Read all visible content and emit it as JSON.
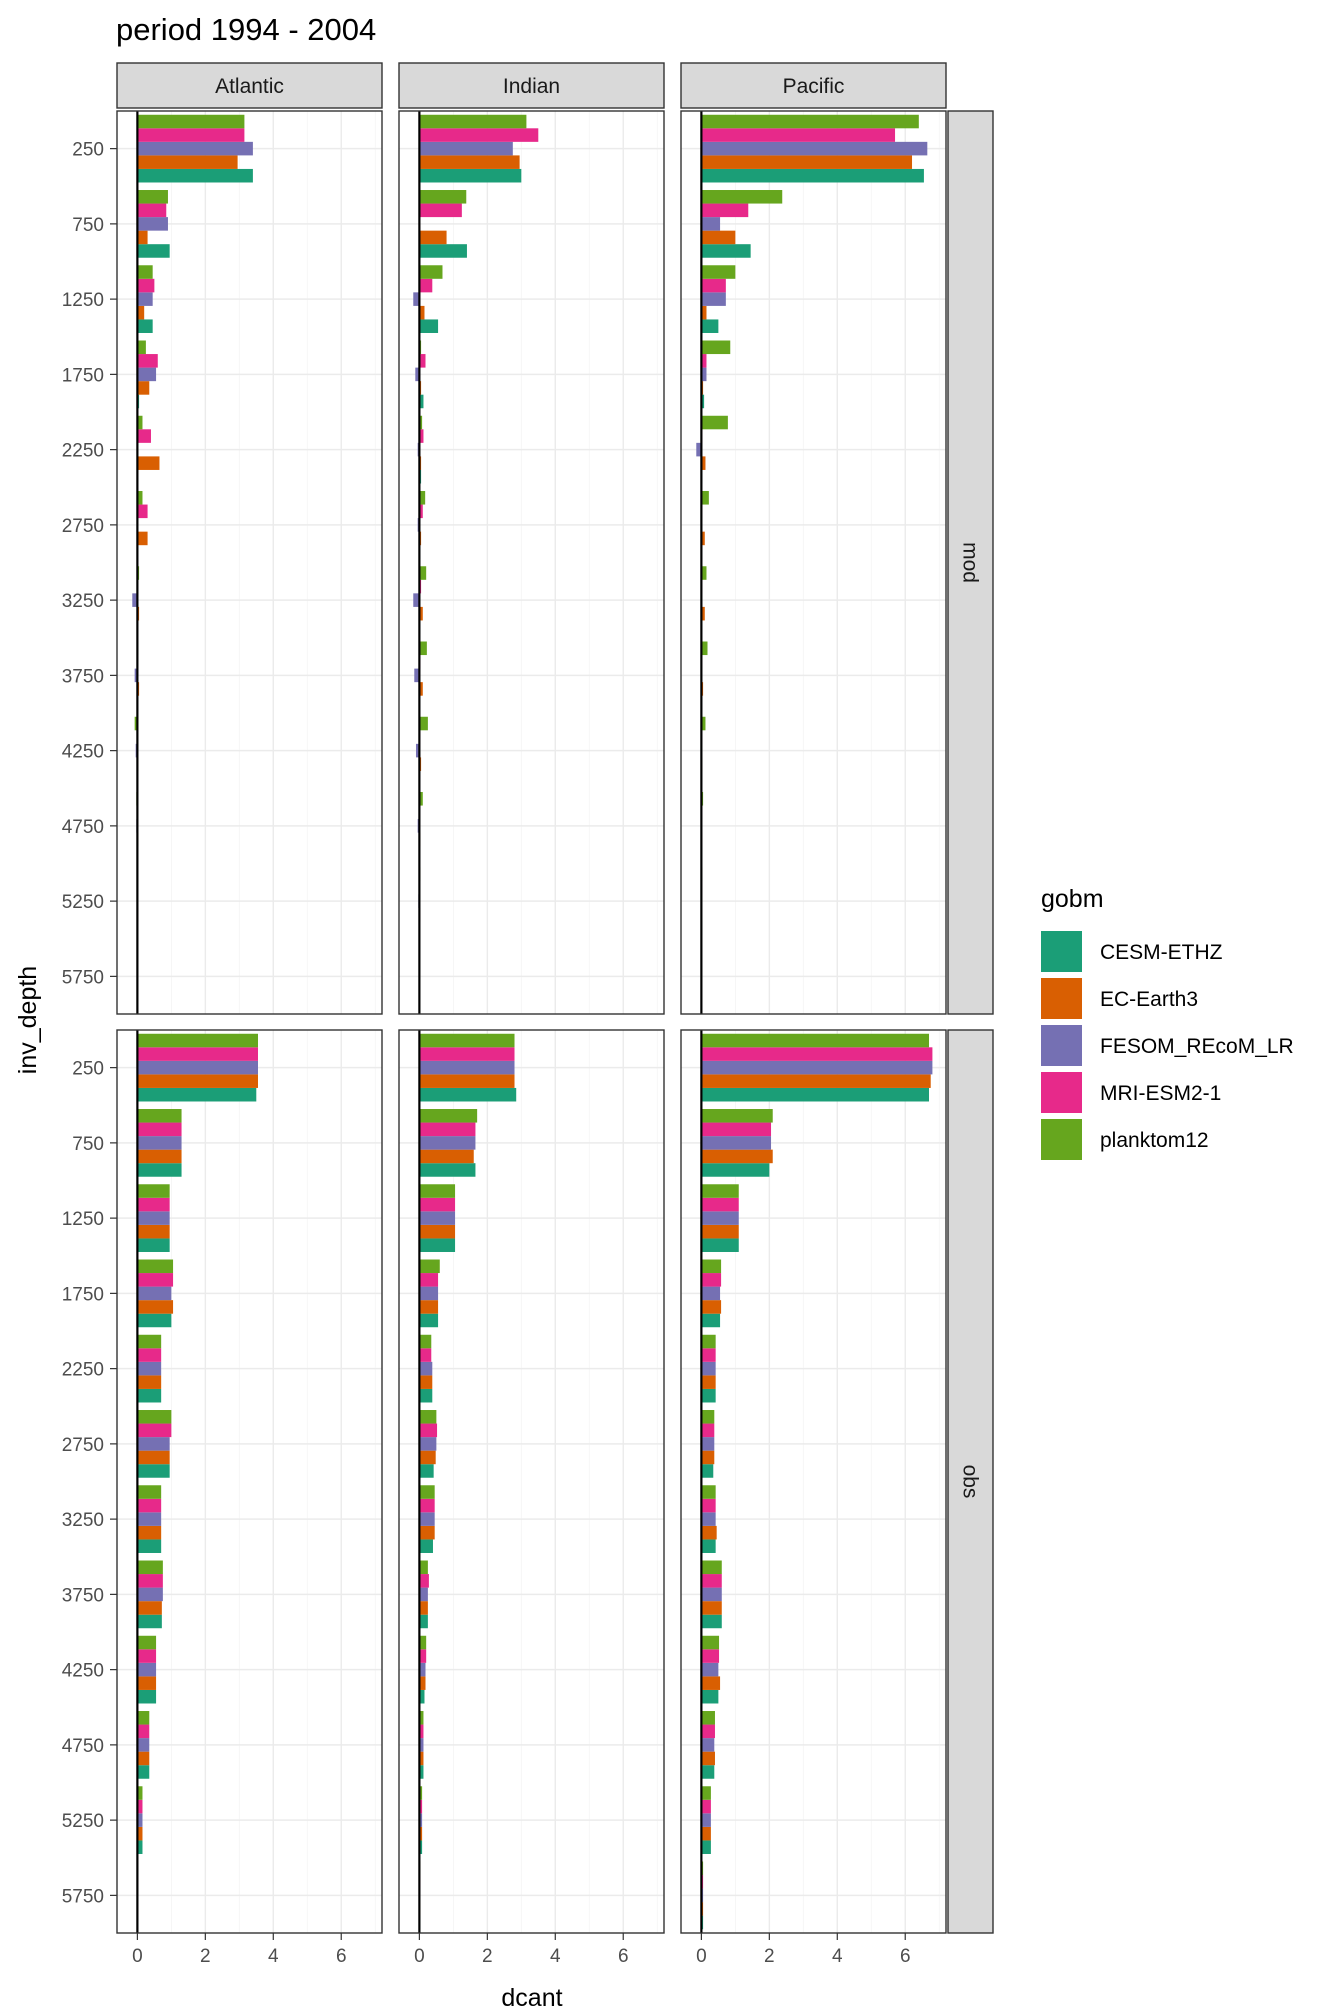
{
  "chart_data": {
    "type": "bar",
    "orientation": "horizontal",
    "title": "period 1994 - 2004",
    "xlabel": "dcant",
    "ylabel": "inv_depth",
    "xlim": [
      -0.6,
      7.2
    ],
    "x_ticks": [
      0,
      2,
      4,
      6
    ],
    "y_categories": [
      250,
      750,
      1250,
      1750,
      2250,
      2750,
      3250,
      3750,
      4250,
      4750,
      5250,
      5750
    ],
    "y_tick_labels": [
      "250",
      "750",
      "1250",
      "1750",
      "2250",
      "2750",
      "3250",
      "3750",
      "4250",
      "4750",
      "5250",
      "5750"
    ],
    "y_reversed": true,
    "grid": true,
    "facet_columns": [
      "Atlantic",
      "Indian",
      "Pacific"
    ],
    "facet_rows": [
      "mod",
      "obs"
    ],
    "legend": {
      "title": "gobm",
      "position": "right",
      "entries": [
        {
          "name": "CESM-ETHZ",
          "color": "#1b9e77"
        },
        {
          "name": "EC-Earth3",
          "color": "#d95f02"
        },
        {
          "name": "FESOM_REcoM_LR",
          "color": "#7570b3"
        },
        {
          "name": "MRI-ESM2-1",
          "color": "#e7298a"
        },
        {
          "name": "planktom12",
          "color": "#66a61e"
        }
      ]
    },
    "series_order_bottom_to_top": [
      "CESM-ETHZ",
      "EC-Earth3",
      "FESOM_REcoM_LR",
      "MRI-ESM2-1",
      "planktom12"
    ],
    "panels": {
      "mod": {
        "Atlantic": {
          "CESM-ETHZ": [
            3.4,
            0.95,
            0.45,
            0.05,
            0.0,
            0.0,
            0.0,
            0.0,
            0.0,
            0.0,
            0.0,
            0.0
          ],
          "EC-Earth3": [
            2.95,
            0.3,
            0.2,
            0.35,
            0.65,
            0.3,
            0.05,
            0.05,
            0.03,
            0.03,
            0.02,
            0.0
          ],
          "FESOM_REcoM_LR": [
            3.4,
            0.9,
            0.45,
            0.55,
            0.0,
            0.0,
            -0.15,
            -0.08,
            -0.05,
            -0.03,
            0.0,
            0.0
          ],
          "MRI-ESM2-1": [
            3.15,
            0.85,
            0.5,
            0.6,
            0.4,
            0.3,
            0.0,
            0.0,
            0.0,
            0.0,
            0.0,
            0.0
          ],
          "planktom12": [
            3.15,
            0.9,
            0.45,
            0.25,
            0.15,
            0.15,
            0.05,
            0.02,
            -0.08,
            -0.03,
            0.0,
            0.0
          ]
        },
        "Indian": {
          "CESM-ETHZ": [
            3.0,
            1.4,
            0.55,
            0.12,
            0.05,
            0.02,
            0.02,
            0.0,
            0.0,
            0.0,
            0.0,
            0.0
          ],
          "EC-Earth3": [
            2.95,
            0.8,
            0.15,
            0.05,
            0.05,
            0.05,
            0.1,
            0.1,
            0.05,
            0.03,
            0.02,
            0.0
          ],
          "FESOM_REcoM_LR": [
            2.75,
            0.0,
            -0.18,
            -0.12,
            -0.05,
            -0.05,
            -0.18,
            -0.15,
            -0.1,
            -0.05,
            -0.03,
            0.0
          ],
          "MRI-ESM2-1": [
            3.5,
            1.25,
            0.38,
            0.18,
            0.12,
            0.1,
            0.05,
            0.03,
            0.02,
            0.0,
            0.0,
            0.0
          ],
          "planktom12": [
            3.15,
            1.38,
            0.68,
            0.05,
            0.08,
            0.17,
            0.2,
            0.22,
            0.25,
            0.1,
            0.03,
            0.0
          ]
        },
        "Pacific": {
          "CESM-ETHZ": [
            6.55,
            1.45,
            0.5,
            0.08,
            0.03,
            0.02,
            0.02,
            0.02,
            0.02,
            0.02,
            0.02,
            0.0
          ],
          "EC-Earth3": [
            6.2,
            1.0,
            0.15,
            0.05,
            0.12,
            0.1,
            0.1,
            0.05,
            0.03,
            0.02,
            0.0,
            0.0
          ],
          "FESOM_REcoM_LR": [
            6.65,
            0.55,
            0.72,
            0.15,
            -0.15,
            0.0,
            0.0,
            0.0,
            0.0,
            0.0,
            0.0,
            0.0
          ],
          "MRI-ESM2-1": [
            5.7,
            1.38,
            0.72,
            0.15,
            0.03,
            0.02,
            0.02,
            0.02,
            0.02,
            0.02,
            0.02,
            0.0
          ],
          "planktom12": [
            6.4,
            2.38,
            1.0,
            0.85,
            0.78,
            0.22,
            0.15,
            0.18,
            0.12,
            0.05,
            0.03,
            0.0
          ]
        }
      },
      "obs": {
        "Atlantic": {
          "CESM-ETHZ": [
            3.5,
            1.3,
            0.95,
            1.0,
            0.7,
            0.95,
            0.7,
            0.72,
            0.55,
            0.35,
            0.15,
            0.02
          ],
          "EC-Earth3": [
            3.55,
            1.3,
            0.95,
            1.05,
            0.7,
            0.95,
            0.7,
            0.72,
            0.55,
            0.35,
            0.15,
            0.02
          ],
          "FESOM_REcoM_LR": [
            3.55,
            1.3,
            0.95,
            1.0,
            0.7,
            0.95,
            0.7,
            0.75,
            0.55,
            0.35,
            0.15,
            0.02
          ],
          "MRI-ESM2-1": [
            3.55,
            1.3,
            0.95,
            1.05,
            0.7,
            1.0,
            0.7,
            0.75,
            0.55,
            0.35,
            0.15,
            0.02
          ],
          "planktom12": [
            3.55,
            1.3,
            0.95,
            1.05,
            0.7,
            1.0,
            0.7,
            0.75,
            0.55,
            0.35,
            0.15,
            0.02
          ]
        },
        "Indian": {
          "CESM-ETHZ": [
            2.85,
            1.65,
            1.05,
            0.55,
            0.38,
            0.42,
            0.4,
            0.25,
            0.15,
            0.12,
            0.08,
            0.03
          ],
          "EC-Earth3": [
            2.8,
            1.6,
            1.05,
            0.55,
            0.38,
            0.48,
            0.45,
            0.25,
            0.18,
            0.12,
            0.08,
            0.03
          ],
          "FESOM_REcoM_LR": [
            2.8,
            1.65,
            1.05,
            0.55,
            0.38,
            0.5,
            0.45,
            0.25,
            0.18,
            0.12,
            0.08,
            0.03
          ],
          "MRI-ESM2-1": [
            2.8,
            1.65,
            1.05,
            0.55,
            0.35,
            0.52,
            0.45,
            0.28,
            0.2,
            0.12,
            0.08,
            0.03
          ],
          "planktom12": [
            2.8,
            1.7,
            1.05,
            0.6,
            0.35,
            0.5,
            0.45,
            0.25,
            0.2,
            0.12,
            0.08,
            0.03
          ]
        },
        "Pacific": {
          "CESM-ETHZ": [
            6.7,
            2.0,
            1.1,
            0.55,
            0.42,
            0.35,
            0.42,
            0.6,
            0.5,
            0.38,
            0.28,
            0.05
          ],
          "EC-Earth3": [
            6.75,
            2.1,
            1.1,
            0.58,
            0.42,
            0.38,
            0.45,
            0.6,
            0.55,
            0.4,
            0.28,
            0.05
          ],
          "FESOM_REcoM_LR": [
            6.8,
            2.05,
            1.1,
            0.55,
            0.42,
            0.38,
            0.42,
            0.6,
            0.5,
            0.38,
            0.28,
            0.05
          ],
          "MRI-ESM2-1": [
            6.8,
            2.05,
            1.1,
            0.58,
            0.42,
            0.38,
            0.42,
            0.6,
            0.52,
            0.4,
            0.28,
            0.05
          ],
          "planktom12": [
            6.7,
            2.1,
            1.1,
            0.58,
            0.42,
            0.38,
            0.42,
            0.6,
            0.52,
            0.4,
            0.28,
            0.05
          ]
        }
      }
    }
  }
}
